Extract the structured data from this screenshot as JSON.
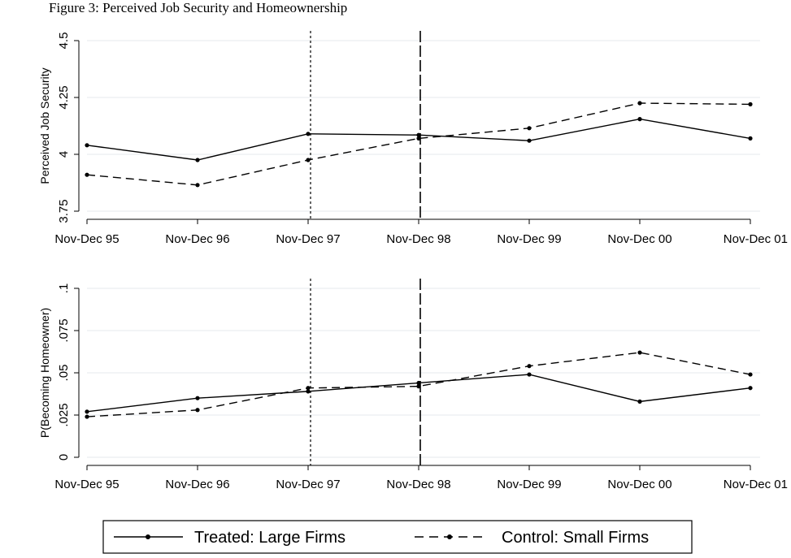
{
  "header_fragment": "Figure 3: Perceived Job Security and Homeownership",
  "chart_data": [
    {
      "type": "line",
      "categories": [
        "Nov-Dec 95",
        "Nov-Dec 96",
        "Nov-Dec 97",
        "Nov-Dec 98",
        "Nov-Dec 99",
        "Nov-Dec 00",
        "Nov-Dec 01"
      ],
      "series": [
        {
          "name": "Treated: Large Firms",
          "values": [
            4.04,
            3.975,
            4.09,
            4.085,
            4.06,
            4.155,
            4.07
          ]
        },
        {
          "name": "Control: Small Firms",
          "values": [
            3.91,
            3.865,
            3.975,
            4.07,
            4.115,
            4.225,
            4.22
          ]
        }
      ],
      "xlabel": "",
      "ylabel": "Perceived Job Security",
      "ylim": [
        3.75,
        4.5
      ],
      "yticks": [
        3.75,
        4,
        4.25,
        4.5
      ],
      "ytick_labels": [
        "3.75",
        "4",
        "4.25",
        "4.5"
      ],
      "grid": true,
      "vertical_lines": [
        {
          "at": "Nov-Dec 97",
          "style": "dashed-short"
        },
        {
          "at": "Nov-Dec 98",
          "style": "dashed-long"
        }
      ]
    },
    {
      "type": "line",
      "categories": [
        "Nov-Dec 95",
        "Nov-Dec 96",
        "Nov-Dec 97",
        "Nov-Dec 98",
        "Nov-Dec 99",
        "Nov-Dec 00",
        "Nov-Dec 01"
      ],
      "series": [
        {
          "name": "Treated: Large Firms",
          "values": [
            0.027,
            0.035,
            0.039,
            0.044,
            0.049,
            0.033,
            0.041
          ]
        },
        {
          "name": "Control: Small Firms",
          "values": [
            0.024,
            0.028,
            0.041,
            0.042,
            0.054,
            0.062,
            0.049
          ]
        }
      ],
      "xlabel": "",
      "ylabel": "P(Becoming Homeowner)",
      "ylim": [
        0,
        0.1
      ],
      "yticks": [
        0,
        0.025,
        0.05,
        0.075,
        0.1
      ],
      "ytick_labels": [
        "0",
        ".025",
        ".05",
        ".075",
        ".1"
      ],
      "grid": true,
      "vertical_lines": [
        {
          "at": "Nov-Dec 97",
          "style": "dashed-short"
        },
        {
          "at": "Nov-Dec 98",
          "style": "dashed-long"
        }
      ]
    }
  ],
  "legend": {
    "placement": "bottom-center",
    "items": [
      {
        "label": "Treated: Large Firms",
        "style": "solid"
      },
      {
        "label": "Control: Small Firms",
        "style": "dashed"
      }
    ]
  }
}
